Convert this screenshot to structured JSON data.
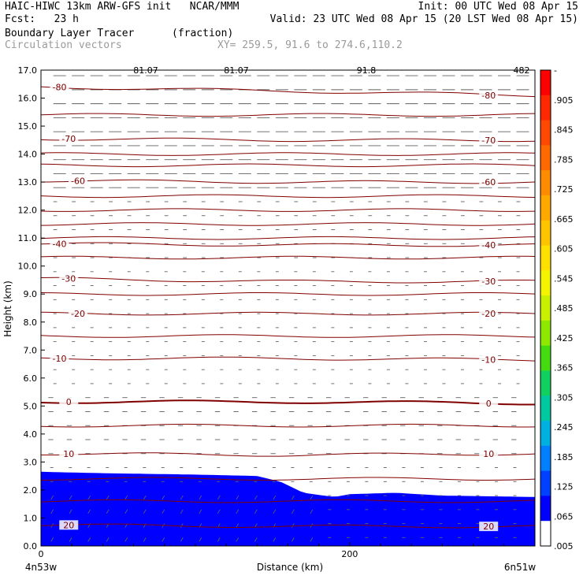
{
  "header": {
    "line1_left": "HAIC-HIWC 13km ARW-GFS init   NCAR/MMM",
    "line1_right": "Init: 00 UTC Wed 08 Apr 15",
    "line2_left": "Fcst:   23 h",
    "line2_right": "Valid: 23 UTC Wed 08 Apr 15 (20 LST Wed 08 Apr 15)",
    "line3_left": "Boundary Layer Tracer",
    "line3_mid": "(fraction)",
    "line4_left": "Circulation vectors",
    "line4_mid": "XY= 259.5, 91.6 to 274.6,110.2"
  },
  "top_labels": [
    "81.07",
    "81.07",
    "91.8",
    "482"
  ],
  "chart_data": {
    "type": "heatmap",
    "title": "Boundary Layer Tracer",
    "units": "(fraction)",
    "ylabel": "Height (km)",
    "xlabel": "Distance (km)",
    "xlim": [
      0,
      320
    ],
    "ylim": [
      0,
      17
    ],
    "yticks": [
      "0.0",
      "1.0",
      "2.0",
      "3.0",
      "4.0",
      "5.0",
      "6.0",
      "7.0",
      "8.0",
      "9.0",
      "10.0",
      "11.0",
      "12.0",
      "13.0",
      "14.0",
      "15.0",
      "16.0",
      "17.0"
    ],
    "xticks": [
      {
        "value": 0,
        "label": "0"
      },
      {
        "value": 200,
        "label": "200"
      }
    ],
    "x_endpoints": {
      "left": "4n53w",
      "right": "6n51w"
    },
    "colorbar": {
      "labels": [
        "-",
        ".905",
        ".845",
        ".785",
        ".725",
        ".665",
        ".605",
        ".545",
        ".485",
        ".425",
        ".365",
        ".305",
        ".245",
        ".185",
        ".125",
        ".065",
        ".005"
      ],
      "colors": [
        "#ff0000",
        "#ff2800",
        "#ff4800",
        "#ff6a00",
        "#ff8c00",
        "#ffa800",
        "#ffc400",
        "#ffe000",
        "#f4f400",
        "#c8f000",
        "#8ee800",
        "#44dc10",
        "#10d060",
        "#00c8a0",
        "#00b0e0",
        "#0080ff",
        "#0040ff",
        "#0000ff",
        "#ffffff"
      ]
    },
    "isotherms": [
      {
        "value": -80,
        "label": "-80",
        "y": [
          16.4,
          16.25,
          16.1
        ]
      },
      {
        "value": -70,
        "label": "-70",
        "y": [
          14.55,
          14.5,
          14.5
        ]
      },
      {
        "value": -60,
        "label": "-60",
        "y": [
          13.05,
          13.0,
          13.0
        ]
      },
      {
        "value": -40,
        "label": "-40",
        "y": [
          10.8,
          10.75,
          10.75
        ]
      },
      {
        "value": -30,
        "label": "-30",
        "y": [
          9.55,
          9.45,
          9.45
        ]
      },
      {
        "value": -20,
        "label": "-20",
        "y": [
          8.3,
          8.3,
          8.3
        ]
      },
      {
        "value": -10,
        "label": "-10",
        "y": [
          6.7,
          6.7,
          6.65
        ]
      },
      {
        "value": 0,
        "label": "0",
        "y": [
          5.15,
          5.15,
          5.1
        ]
      },
      {
        "value": 10,
        "label": "10",
        "y": [
          3.3,
          3.25,
          3.3
        ]
      },
      {
        "value": 20,
        "label": "20",
        "y": [
          0.75,
          0.7,
          0.7
        ]
      }
    ],
    "unlabeled_theta_lines": [
      15.4,
      14.0,
      13.6,
      12.5,
      12.0,
      11.5,
      11.0,
      10.3,
      9.0,
      7.5,
      4.3,
      2.4,
      1.6
    ],
    "tracer_top_km": [
      {
        "x": 0,
        "y": 2.65
      },
      {
        "x": 40,
        "y": 2.6
      },
      {
        "x": 100,
        "y": 2.55
      },
      {
        "x": 140,
        "y": 2.5
      },
      {
        "x": 155,
        "y": 2.3
      },
      {
        "x": 170,
        "y": 1.9
      },
      {
        "x": 190,
        "y": 1.75
      },
      {
        "x": 200,
        "y": 1.85
      },
      {
        "x": 230,
        "y": 1.9
      },
      {
        "x": 260,
        "y": 1.8
      },
      {
        "x": 320,
        "y": 1.75
      }
    ],
    "legend": "none",
    "grid": false
  }
}
